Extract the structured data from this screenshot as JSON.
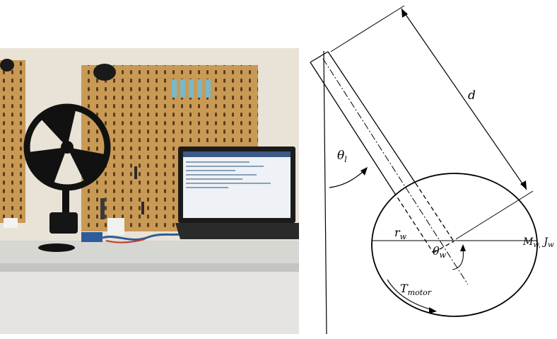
{
  "photo": {
    "description_icon": "inertia-wheel-pendulum-setup-photo",
    "colors": {
      "wall": "#e9e2d6",
      "pegboard": "#c99a55",
      "desk": "#dcdcd8",
      "wheel": "#111111",
      "laptop": "#1b1b1b",
      "clips": "#7ab8c8"
    }
  },
  "diagram": {
    "labels": {
      "d": "d",
      "theta_l": "θ",
      "theta_l_sub": "l",
      "r_w": "r",
      "r_w_sub": "w",
      "theta_w": "θ",
      "theta_w_sub": "w",
      "mass_inertia": "M",
      "mass_sub": "w,",
      "inertia": " J",
      "inertia_sub": "w",
      "torque": "T",
      "torque_sub": "motor"
    }
  }
}
